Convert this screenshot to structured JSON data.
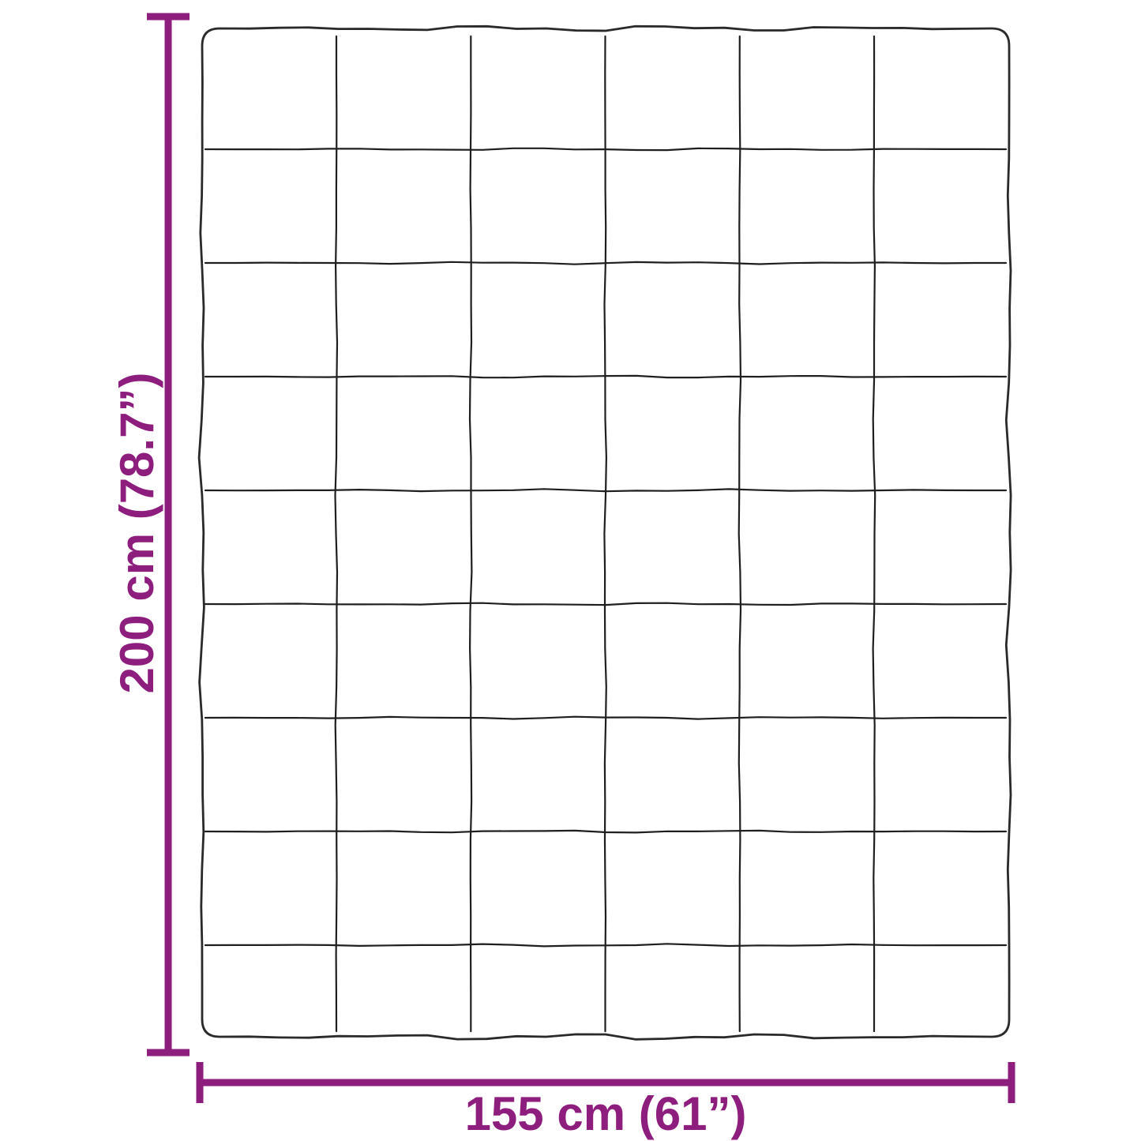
{
  "diagram": {
    "kind": "product-dimension-diagram",
    "subject": "quilted-blanket-top-view",
    "width_label": "155 cm (61”)",
    "height_label": "200 cm (78.7”)",
    "accent_color": "#8E1E7E",
    "outline_color": "#2a2a2a",
    "grid_color": "#1f1f1f",
    "background_color": "#ffffff",
    "blanket_grid": {
      "columns": 6,
      "rows": 9
    }
  }
}
